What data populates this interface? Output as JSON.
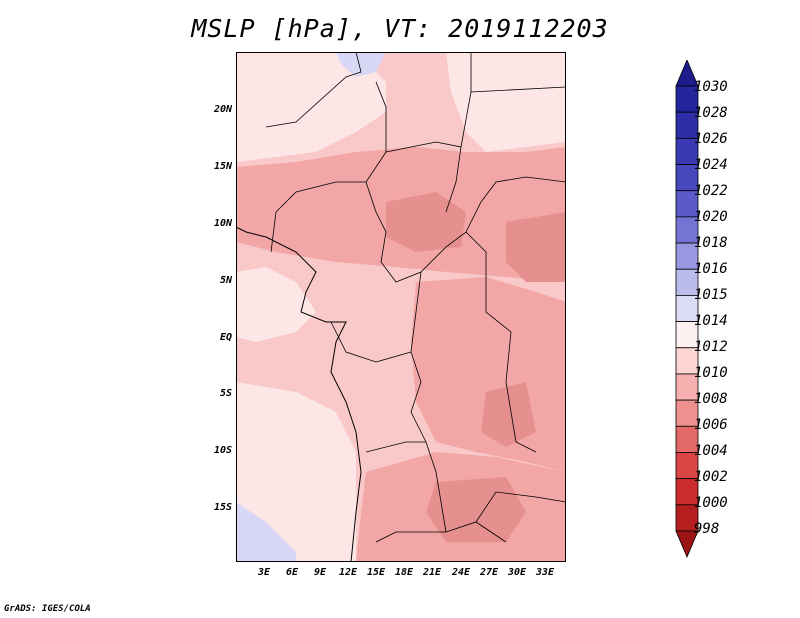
{
  "title": "MSLP [hPa], VT: 2019112203",
  "credit": "GrADS: IGES/COLA",
  "map": {
    "latitude_labels": [
      "20N",
      "15N",
      "10N",
      "5N",
      "EQ",
      "5S",
      "10S",
      "15S"
    ],
    "latitude_values": [
      20,
      15,
      10,
      5,
      0,
      -5,
      -10,
      -15
    ],
    "longitude_labels": [
      "3E",
      "6E",
      "9E",
      "12E",
      "15E",
      "18E",
      "21E",
      "24E",
      "27E",
      "30E",
      "33E"
    ],
    "longitude_values": [
      3,
      6,
      9,
      12,
      15,
      18,
      21,
      24,
      27,
      30,
      33
    ],
    "lat_range": [
      -20,
      24
    ],
    "lon_range": [
      0,
      35
    ]
  },
  "colorbar": {
    "labels": [
      "1030",
      "1028",
      "1026",
      "1024",
      "1022",
      "1020",
      "1018",
      "1016",
      "1015",
      "1014",
      "1012",
      "1010",
      "1008",
      "1006",
      "1004",
      "1002",
      "1000",
      "998"
    ],
    "colors": [
      "#1c1c8c",
      "#24249c",
      "#2e2ea8",
      "#3a3ab4",
      "#4848be",
      "#5a5ac8",
      "#7474d4",
      "#9898e0",
      "#bcbcec",
      "#dcdcf6",
      "#fdf0f0",
      "#fcd4d4",
      "#f6b0b0",
      "#ee9090",
      "#e46a6a",
      "#da4646",
      "#cc2c2c",
      "#b41e1e",
      "#9c1414"
    ]
  },
  "colors": {
    "land_base": "#f9c9c9",
    "light": "#fde6e6",
    "mid": "#f2a6a6",
    "dark": "#e68f8f",
    "blue": "#d8d8f6"
  }
}
